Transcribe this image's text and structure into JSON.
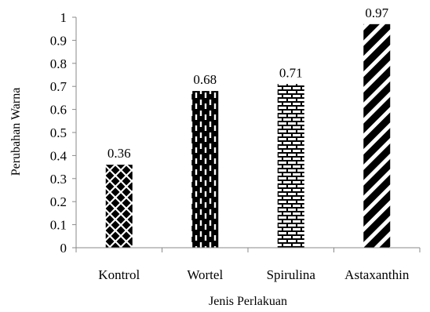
{
  "chart_data": {
    "type": "bar",
    "categories": [
      "Kontrol",
      "Wortel",
      "Spirulina",
      "Astaxanthin"
    ],
    "values": [
      0.36,
      0.68,
      0.71,
      0.97
    ],
    "data_labels": [
      "0.36",
      "0.68",
      "0.71",
      "0.97"
    ],
    "xlabel": "Jenis Perlakuan",
    "ylabel": "Perubahan Warna",
    "ylim": [
      0,
      1
    ],
    "yticks": [
      "0",
      "0.1",
      "0.2",
      "0.3",
      "0.4",
      "0.5",
      "0.6",
      "0.7",
      "0.8",
      "0.9",
      "1"
    ],
    "grid": false,
    "legend": "none",
    "bar_fills": [
      "diamond-lattice",
      "dashed-vertical",
      "brick",
      "diagonal-stripes"
    ],
    "colors": {
      "ink": "#000000",
      "paper": "#ffffff"
    }
  }
}
